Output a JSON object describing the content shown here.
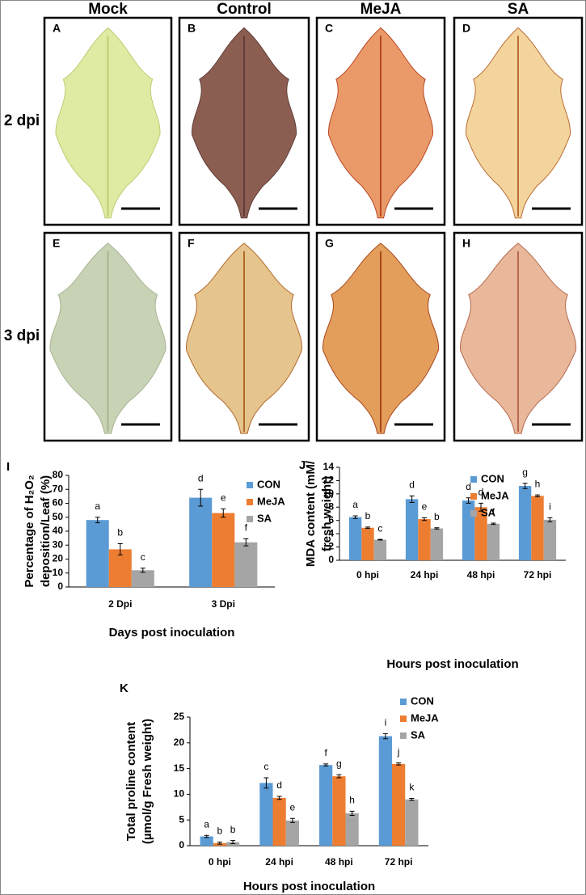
{
  "photo_grid": {
    "columns": [
      "Mock",
      "Control",
      "MeJA",
      "SA"
    ],
    "rows": [
      "2 dpi",
      "3 dpi"
    ],
    "panels": [
      "A",
      "B",
      "C",
      "D",
      "E",
      "F",
      "G",
      "H"
    ]
  },
  "chart_data": [
    {
      "type": "bar",
      "panel_label": "I",
      "ylabel": [
        "Percentage of H₂O₂",
        "deposition/Leaf (%)"
      ],
      "xlabel": "Days post inoculation",
      "categories": [
        "2 Dpi",
        "3 Dpi"
      ],
      "ylim": [
        0,
        80
      ],
      "yticks": [
        0,
        10,
        20,
        30,
        40,
        50,
        60,
        70,
        80
      ],
      "legend": "upper right",
      "series": [
        {
          "name": "CON",
          "color": "#5b9bd5",
          "values": [
            48,
            64
          ],
          "errors": [
            2,
            6
          ],
          "letters": [
            "a",
            "d"
          ]
        },
        {
          "name": "MeJA",
          "color": "#ed7d31",
          "values": [
            27,
            53
          ],
          "errors": [
            4,
            3
          ],
          "letters": [
            "b",
            "e"
          ]
        },
        {
          "name": "SA",
          "color": "#a5a5a5",
          "values": [
            12,
            32
          ],
          "errors": [
            1.5,
            2.5
          ],
          "letters": [
            "c",
            "f"
          ]
        }
      ]
    },
    {
      "type": "bar",
      "panel_label": "J",
      "ylabel": [
        "MDA content (mM/",
        "fresh weight)"
      ],
      "xlabel": "Hours post inoculation",
      "categories": [
        "0 hpi",
        "24 hpi",
        "48 hpi",
        "72 hpi"
      ],
      "ylim": [
        0,
        14
      ],
      "yticks": [
        0,
        2,
        4,
        6,
        8,
        10,
        12,
        14
      ],
      "legend": "upper right",
      "series": [
        {
          "name": "CON",
          "color": "#5b9bd5",
          "values": [
            6.5,
            9.2,
            9.0,
            11.2
          ],
          "errors": [
            0.2,
            0.5,
            0.4,
            0.4
          ],
          "letters": [
            "a",
            "d",
            "d",
            "g"
          ]
        },
        {
          "name": "MeJA",
          "color": "#ed7d31",
          "values": [
            4.9,
            6.2,
            8.0,
            9.7
          ],
          "errors": [
            0.1,
            0.2,
            0.6,
            0.15
          ],
          "letters": [
            "b",
            "e",
            "d",
            "h"
          ]
        },
        {
          "name": "SA",
          "color": "#a5a5a5",
          "values": [
            3.1,
            4.8,
            5.5,
            6.1
          ],
          "errors": [
            0.05,
            0.1,
            0.1,
            0.3
          ],
          "letters": [
            "c",
            "b",
            "f",
            "i"
          ]
        }
      ]
    },
    {
      "type": "bar",
      "panel_label": "K",
      "ylabel": [
        "Total proline content",
        "(µmol/g Fresh weight)"
      ],
      "xlabel": "Hours post inoculation",
      "categories": [
        "0 hpi",
        "24 hpi",
        "48 hpi",
        "72 hpi"
      ],
      "ylim": [
        0,
        25
      ],
      "yticks": [
        0,
        5,
        10,
        15,
        20,
        25
      ],
      "legend": "upper right",
      "series": [
        {
          "name": "CON",
          "color": "#5b9bd5",
          "values": [
            1.8,
            12.2,
            15.7,
            21.3
          ],
          "errors": [
            0.2,
            1.0,
            0.2,
            0.5
          ],
          "letters": [
            "a",
            "c",
            "f",
            "i"
          ]
        },
        {
          "name": "MeJA",
          "color": "#ed7d31",
          "values": [
            0.5,
            9.3,
            13.5,
            15.9
          ],
          "errors": [
            0.2,
            0.3,
            0.3,
            0.2
          ],
          "letters": [
            "b",
            "d",
            "g",
            "j"
          ]
        },
        {
          "name": "SA",
          "color": "#a5a5a5",
          "values": [
            0.7,
            4.9,
            6.3,
            9.0
          ],
          "errors": [
            0.3,
            0.4,
            0.4,
            0.2
          ],
          "letters": [
            "b",
            "e",
            "h",
            "k"
          ]
        }
      ]
    }
  ]
}
